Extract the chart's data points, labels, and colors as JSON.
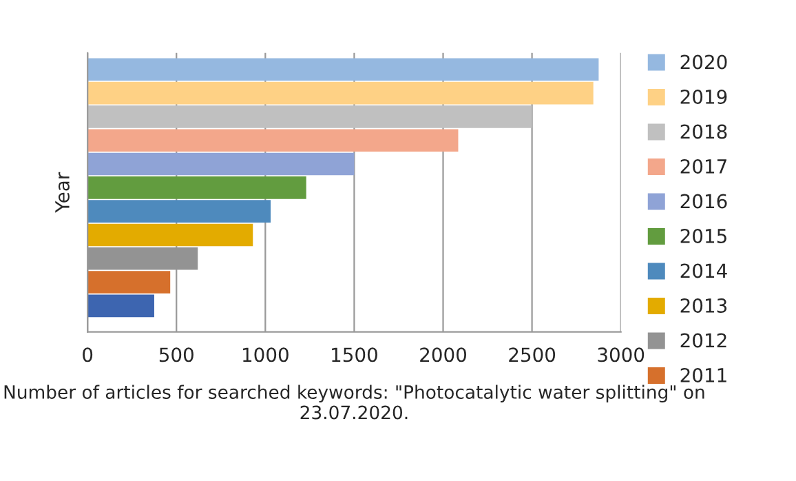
{
  "chart_data": {
    "type": "bar",
    "orientation": "horizontal",
    "ylabel": "Year",
    "xlabel": "Number of articles for searched keywords: \"Photocatalytic water splitting\" on 23.07.2020.",
    "categories": [
      null,
      null,
      null,
      null,
      null,
      null,
      null,
      null,
      null,
      null,
      null
    ],
    "series": [
      {
        "name": "2020",
        "color": "#95b8e0",
        "values": [
          2875,
          null,
          null,
          null,
          null,
          null,
          null,
          null,
          null,
          null,
          null
        ]
      },
      {
        "name": "2019",
        "color": "#fed185",
        "values": [
          null,
          2845,
          null,
          null,
          null,
          null,
          null,
          null,
          null,
          null,
          null
        ]
      },
      {
        "name": "2018",
        "color": "#c0c0c0",
        "values": [
          null,
          null,
          2500,
          null,
          null,
          null,
          null,
          null,
          null,
          null,
          null
        ]
      },
      {
        "name": "2017",
        "color": "#f3a78b",
        "values": [
          null,
          null,
          null,
          2085,
          null,
          null,
          null,
          null,
          null,
          null,
          null
        ]
      },
      {
        "name": "2016",
        "color": "#8fa3d6",
        "values": [
          null,
          null,
          null,
          null,
          1500,
          null,
          null,
          null,
          null,
          null,
          null
        ]
      },
      {
        "name": "2015",
        "color": "#629c3f",
        "values": [
          null,
          null,
          null,
          null,
          null,
          1230,
          null,
          null,
          null,
          null,
          null
        ]
      },
      {
        "name": "2014",
        "color": "#4e8abd",
        "values": [
          null,
          null,
          null,
          null,
          null,
          null,
          1030,
          null,
          null,
          null,
          null
        ]
      },
      {
        "name": "2013",
        "color": "#e3ab00",
        "values": [
          null,
          null,
          null,
          null,
          null,
          null,
          null,
          930,
          null,
          null,
          null
        ]
      },
      {
        "name": "2012",
        "color": "#939393",
        "values": [
          null,
          null,
          null,
          null,
          null,
          null,
          null,
          null,
          620,
          null,
          null
        ]
      },
      {
        "name": "2011",
        "color": "#d6702c",
        "values": [
          null,
          null,
          null,
          null,
          null,
          null,
          null,
          null,
          null,
          465,
          null
        ]
      },
      {
        "color": "#3d65b0",
        "values": [
          null,
          null,
          null,
          null,
          null,
          null,
          null,
          null,
          null,
          null,
          375
        ]
      }
    ],
    "xlim": [
      0,
      3000
    ],
    "xticks": [
      0,
      500,
      1000,
      1500,
      2000,
      2500,
      3000
    ],
    "grid": "x",
    "legend": "right"
  }
}
